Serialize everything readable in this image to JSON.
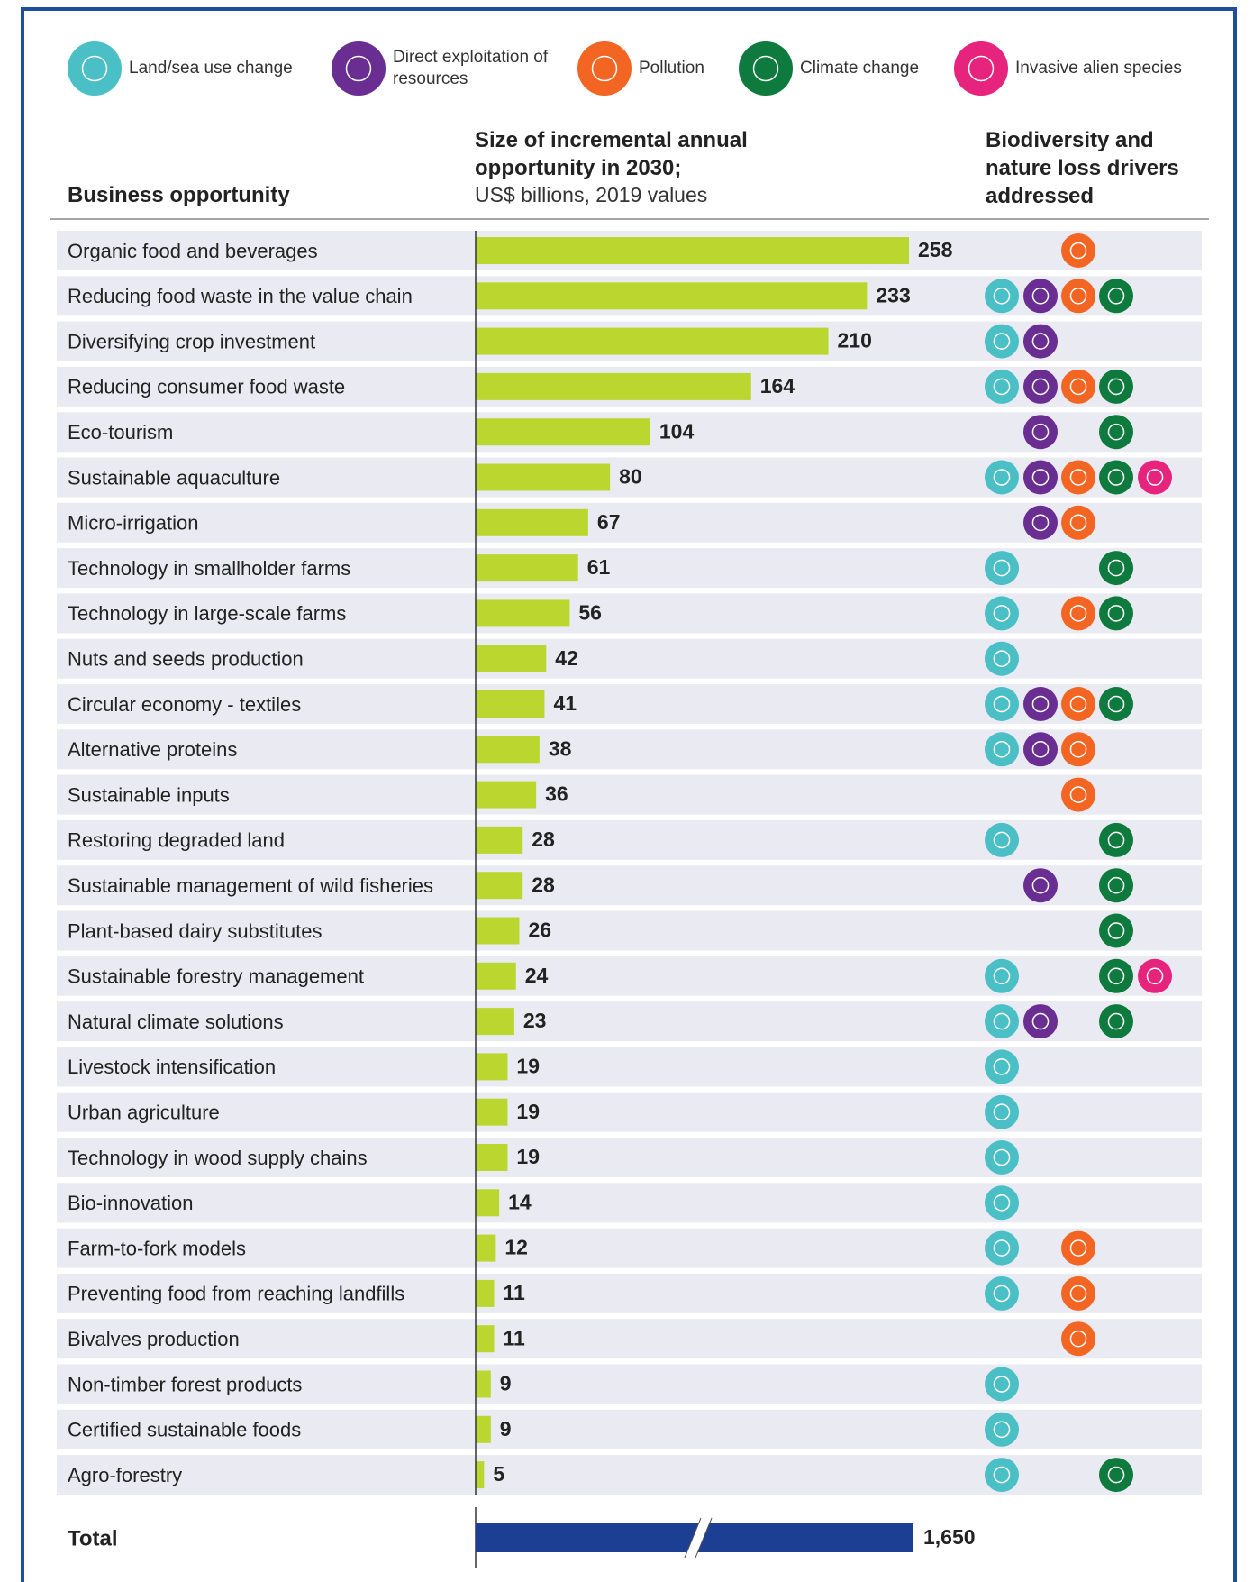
{
  "chart_data": {
    "type": "bar",
    "category_axis_title": "Business opportunity",
    "value_axis_title": "Size of incremental annual opportunity in 2030;",
    "value_axis_subtitle": "US$ billions, 2019 values",
    "drivers_title": "Biodiversity and nature loss drivers addressed",
    "color": "#bcd630",
    "drivers": [
      {
        "name": "Land/sea use change",
        "color": "#4bbfc6"
      },
      {
        "name": "Direct exploitation of resources",
        "color": "#6a2d91"
      },
      {
        "name": "Pollution",
        "color": "#f26522"
      },
      {
        "name": "Climate change",
        "color": "#0f7a3e"
      },
      {
        "name": "Invasive alien species",
        "color": "#e6237d"
      }
    ],
    "categories": [
      "Organic food and beverages",
      "Reducing food waste in the value chain",
      "Diversifying crop investment",
      "Reducing consumer food waste",
      "Eco-tourism",
      "Sustainable aquaculture",
      "Micro-irrigation",
      "Technology in smallholder farms",
      "Technology in large-scale farms",
      "Nuts and seeds production",
      "Circular economy - textiles",
      "Alternative proteins",
      "Sustainable inputs",
      "Restoring degraded land",
      "Sustainable management of wild fisheries",
      "Plant-based dairy substitutes",
      "Sustainable forestry management",
      "Natural climate solutions",
      "Livestock intensification",
      "Urban agriculture",
      "Technology in wood supply chains",
      "Bio-innovation",
      "Farm-to-fork models",
      "Preventing food from reaching landfills",
      "Bivalves production",
      "Non-timber forest products",
      "Certified sustainable foods",
      "Agro-forestry"
    ],
    "values": [
      258,
      233,
      210,
      164,
      104,
      80,
      67,
      61,
      56,
      42,
      41,
      38,
      36,
      28,
      28,
      26,
      24,
      23,
      19,
      19,
      19,
      14,
      12,
      11,
      11,
      9,
      9,
      5
    ],
    "row_drivers": [
      [
        2
      ],
      [
        0,
        1,
        2,
        3
      ],
      [
        0,
        1
      ],
      [
        0,
        1,
        2,
        3
      ],
      [
        1,
        3
      ],
      [
        0,
        1,
        2,
        3,
        4
      ],
      [
        1,
        2
      ],
      [
        0,
        3
      ],
      [
        0,
        2,
        3
      ],
      [
        0
      ],
      [
        0,
        1,
        2,
        3
      ],
      [
        0,
        1,
        2
      ],
      [
        2
      ],
      [
        0,
        3
      ],
      [
        1,
        3
      ],
      [
        3
      ],
      [
        0,
        3,
        4
      ],
      [
        0,
        1,
        3
      ],
      [
        0
      ],
      [
        0
      ],
      [
        0
      ],
      [
        0
      ],
      [
        0,
        2
      ],
      [
        0,
        2
      ],
      [
        2
      ],
      [
        0
      ],
      [
        0
      ],
      [
        0,
        3
      ]
    ],
    "total": {
      "label": "Total",
      "value": 1650,
      "value_label": "1,650",
      "color": "#1c3f94"
    }
  }
}
